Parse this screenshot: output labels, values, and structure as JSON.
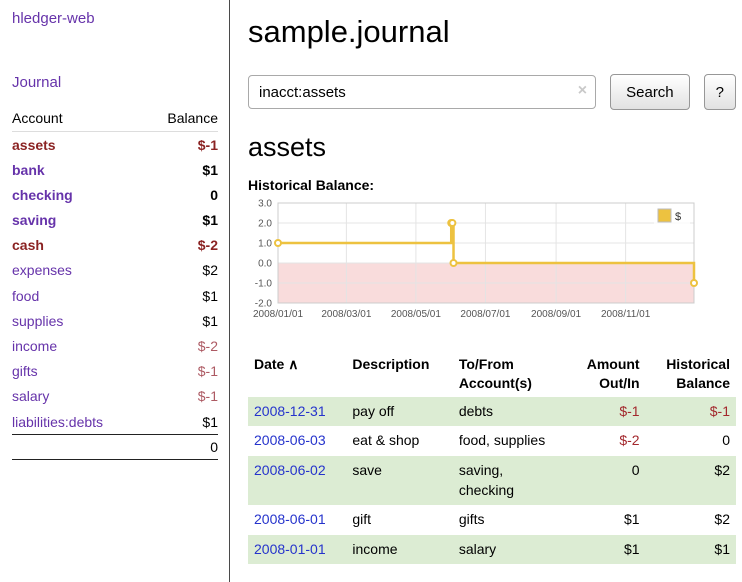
{
  "app": {
    "title": "hledger-web",
    "nav_journal": "Journal"
  },
  "sidebar": {
    "accounts_header": {
      "account": "Account",
      "balance": "Balance"
    },
    "accounts": [
      {
        "name": "assets",
        "balance": "$-1",
        "indent": 0,
        "bold": true,
        "name_negative": true,
        "balance_negative": true
      },
      {
        "name": "bank",
        "balance": "$1",
        "indent": 1,
        "bold": true,
        "name_negative": false,
        "balance_negative": false
      },
      {
        "name": "checking",
        "balance": "0",
        "indent": 2,
        "bold": true,
        "name_negative": false,
        "balance_negative": false
      },
      {
        "name": "saving",
        "balance": "$1",
        "indent": 2,
        "bold": true,
        "name_negative": false,
        "balance_negative": false
      },
      {
        "name": "cash",
        "balance": "$-2",
        "indent": 1,
        "bold": true,
        "name_negative": true,
        "balance_negative": true
      },
      {
        "name": "expenses",
        "balance": "$2",
        "indent": 0,
        "bold": false,
        "name_negative": false,
        "balance_negative": false
      },
      {
        "name": "food",
        "balance": "$1",
        "indent": 1,
        "bold": false,
        "name_negative": false,
        "balance_negative": false
      },
      {
        "name": "supplies",
        "balance": "$1",
        "indent": 1,
        "bold": false,
        "name_negative": false,
        "balance_negative": false
      },
      {
        "name": "income",
        "balance": "$-2",
        "indent": 0,
        "bold": false,
        "name_negative": false,
        "balance_negative": true
      },
      {
        "name": "gifts",
        "balance": "$-1",
        "indent": 1,
        "bold": false,
        "name_negative": false,
        "balance_negative": true
      },
      {
        "name": "salary",
        "balance": "$-1",
        "indent": 1,
        "bold": false,
        "name_negative": false,
        "balance_negative": true
      },
      {
        "name": "liabilities:debts",
        "balance": "$1",
        "indent": 0,
        "bold": false,
        "name_negative": false,
        "balance_negative": false
      }
    ],
    "total": "0"
  },
  "main": {
    "title": "sample.journal",
    "search": {
      "value": "inacct:assets",
      "clear_icon": "×",
      "submit_label": "Search",
      "help_label": "?"
    },
    "account_heading": "assets",
    "balance_label": "Historical Balance:"
  },
  "chart_data": {
    "type": "line",
    "step": true,
    "title": "Historical Balance",
    "series": [
      {
        "name": "$",
        "color": "#edc240",
        "points": [
          [
            "2008-01-01",
            1
          ],
          [
            "2008-06-01",
            2
          ],
          [
            "2008-06-02",
            2
          ],
          [
            "2008-06-03",
            0
          ],
          [
            "2008-12-31",
            -1
          ]
        ]
      }
    ],
    "xlim": [
      "2008-01-01",
      "2008-12-31"
    ],
    "ylim": [
      -2,
      3
    ],
    "y_ticks": [
      {
        "label": "3.0",
        "value": 3
      },
      {
        "label": "2.0",
        "value": 2
      },
      {
        "label": "1.0",
        "value": 1
      },
      {
        "label": "0.0",
        "value": 0
      },
      {
        "label": "-1.0",
        "value": -1
      },
      {
        "label": "-2.0",
        "value": -2
      }
    ],
    "x_ticks": [
      {
        "label": "2008/01/01",
        "value": "2008-01-01"
      },
      {
        "label": "2008/03/01",
        "value": "2008-03-01"
      },
      {
        "label": "2008/05/01",
        "value": "2008-05-01"
      },
      {
        "label": "2008/07/01",
        "value": "2008-07-01"
      },
      {
        "label": "2008/09/01",
        "value": "2008-09-01"
      },
      {
        "label": "2008/11/01",
        "value": "2008-11-01"
      }
    ],
    "legend": {
      "position": "top-right",
      "entries": [
        {
          "label": "$",
          "color": "#edc240"
        }
      ]
    },
    "negative_region_color": "#f9dcdc",
    "grid": true
  },
  "register": {
    "headers": {
      "date": "Date",
      "sort_indicator": "∧",
      "description": "Description",
      "tofrom_line1": "To/From",
      "tofrom_line2": "Account(s)",
      "amount_line1": "Amount",
      "amount_line2": "Out/In",
      "balance_line1": "Historical",
      "balance_line2": "Balance"
    },
    "rows": [
      {
        "date": "2008-12-31",
        "description": "pay off",
        "accounts": "debts",
        "amount": "$-1",
        "amount_negative": true,
        "balance": "$-1",
        "balance_negative": true
      },
      {
        "date": "2008-06-03",
        "description": "eat & shop",
        "accounts": "food, supplies",
        "amount": "$-2",
        "amount_negative": true,
        "balance": "0",
        "balance_negative": false
      },
      {
        "date": "2008-06-02",
        "description": "save",
        "accounts": "saving, checking",
        "amount": "0",
        "amount_negative": false,
        "balance": "$2",
        "balance_negative": false
      },
      {
        "date": "2008-06-01",
        "description": "gift",
        "accounts": "gifts",
        "amount": "$1",
        "amount_negative": false,
        "balance": "$2",
        "balance_negative": false
      },
      {
        "date": "2008-01-01",
        "description": "income",
        "accounts": "salary",
        "amount": "$1",
        "amount_negative": false,
        "balance": "$1",
        "balance_negative": false
      }
    ]
  },
  "colors": {
    "link_purple": "#6633aa",
    "link_blue": "#2533cc",
    "negative_strong": "#8b2323",
    "negative": "#ad5a63",
    "row_stripe_green": "#dcecd3",
    "chart_line": "#edc240"
  }
}
